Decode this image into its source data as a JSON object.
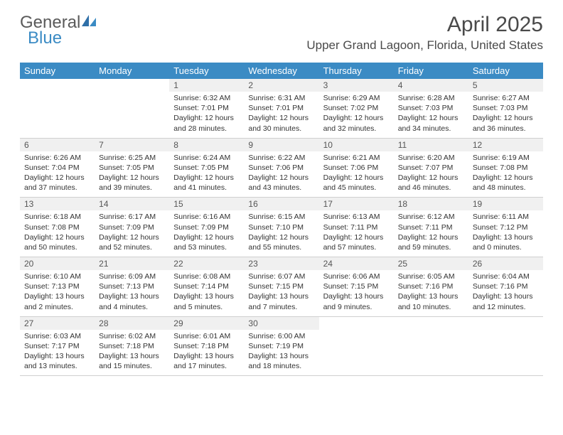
{
  "brand": {
    "part1": "General",
    "part2": "Blue"
  },
  "title": "April 2025",
  "location": "Upper Grand Lagoon, Florida, United States",
  "colors": {
    "header_bg": "#3b8bc4",
    "header_text": "#ffffff",
    "daynum_bg": "#f0f0f0",
    "body_text": "#333333",
    "rule": "#cfcfcf"
  },
  "typography": {
    "title_fontsize": 30,
    "location_fontsize": 17,
    "dayheader_fontsize": 13,
    "daynum_fontsize": 12,
    "info_fontsize": 10.5
  },
  "day_names": [
    "Sunday",
    "Monday",
    "Tuesday",
    "Wednesday",
    "Thursday",
    "Friday",
    "Saturday"
  ],
  "weeks": [
    [
      null,
      null,
      {
        "n": "1",
        "sunrise": "6:32 AM",
        "sunset": "7:01 PM",
        "day_h": "12",
        "day_m": "28"
      },
      {
        "n": "2",
        "sunrise": "6:31 AM",
        "sunset": "7:01 PM",
        "day_h": "12",
        "day_m": "30"
      },
      {
        "n": "3",
        "sunrise": "6:29 AM",
        "sunset": "7:02 PM",
        "day_h": "12",
        "day_m": "32"
      },
      {
        "n": "4",
        "sunrise": "6:28 AM",
        "sunset": "7:03 PM",
        "day_h": "12",
        "day_m": "34"
      },
      {
        "n": "5",
        "sunrise": "6:27 AM",
        "sunset": "7:03 PM",
        "day_h": "12",
        "day_m": "36"
      }
    ],
    [
      {
        "n": "6",
        "sunrise": "6:26 AM",
        "sunset": "7:04 PM",
        "day_h": "12",
        "day_m": "37"
      },
      {
        "n": "7",
        "sunrise": "6:25 AM",
        "sunset": "7:05 PM",
        "day_h": "12",
        "day_m": "39"
      },
      {
        "n": "8",
        "sunrise": "6:24 AM",
        "sunset": "7:05 PM",
        "day_h": "12",
        "day_m": "41"
      },
      {
        "n": "9",
        "sunrise": "6:22 AM",
        "sunset": "7:06 PM",
        "day_h": "12",
        "day_m": "43"
      },
      {
        "n": "10",
        "sunrise": "6:21 AM",
        "sunset": "7:06 PM",
        "day_h": "12",
        "day_m": "45"
      },
      {
        "n": "11",
        "sunrise": "6:20 AM",
        "sunset": "7:07 PM",
        "day_h": "12",
        "day_m": "46"
      },
      {
        "n": "12",
        "sunrise": "6:19 AM",
        "sunset": "7:08 PM",
        "day_h": "12",
        "day_m": "48"
      }
    ],
    [
      {
        "n": "13",
        "sunrise": "6:18 AM",
        "sunset": "7:08 PM",
        "day_h": "12",
        "day_m": "50"
      },
      {
        "n": "14",
        "sunrise": "6:17 AM",
        "sunset": "7:09 PM",
        "day_h": "12",
        "day_m": "52"
      },
      {
        "n": "15",
        "sunrise": "6:16 AM",
        "sunset": "7:09 PM",
        "day_h": "12",
        "day_m": "53"
      },
      {
        "n": "16",
        "sunrise": "6:15 AM",
        "sunset": "7:10 PM",
        "day_h": "12",
        "day_m": "55"
      },
      {
        "n": "17",
        "sunrise": "6:13 AM",
        "sunset": "7:11 PM",
        "day_h": "12",
        "day_m": "57"
      },
      {
        "n": "18",
        "sunrise": "6:12 AM",
        "sunset": "7:11 PM",
        "day_h": "12",
        "day_m": "59"
      },
      {
        "n": "19",
        "sunrise": "6:11 AM",
        "sunset": "7:12 PM",
        "day_h": "13",
        "day_m": "0"
      }
    ],
    [
      {
        "n": "20",
        "sunrise": "6:10 AM",
        "sunset": "7:13 PM",
        "day_h": "13",
        "day_m": "2"
      },
      {
        "n": "21",
        "sunrise": "6:09 AM",
        "sunset": "7:13 PM",
        "day_h": "13",
        "day_m": "4"
      },
      {
        "n": "22",
        "sunrise": "6:08 AM",
        "sunset": "7:14 PM",
        "day_h": "13",
        "day_m": "5"
      },
      {
        "n": "23",
        "sunrise": "6:07 AM",
        "sunset": "7:15 PM",
        "day_h": "13",
        "day_m": "7"
      },
      {
        "n": "24",
        "sunrise": "6:06 AM",
        "sunset": "7:15 PM",
        "day_h": "13",
        "day_m": "9"
      },
      {
        "n": "25",
        "sunrise": "6:05 AM",
        "sunset": "7:16 PM",
        "day_h": "13",
        "day_m": "10"
      },
      {
        "n": "26",
        "sunrise": "6:04 AM",
        "sunset": "7:16 PM",
        "day_h": "13",
        "day_m": "12"
      }
    ],
    [
      {
        "n": "27",
        "sunrise": "6:03 AM",
        "sunset": "7:17 PM",
        "day_h": "13",
        "day_m": "13"
      },
      {
        "n": "28",
        "sunrise": "6:02 AM",
        "sunset": "7:18 PM",
        "day_h": "13",
        "day_m": "15"
      },
      {
        "n": "29",
        "sunrise": "6:01 AM",
        "sunset": "7:18 PM",
        "day_h": "13",
        "day_m": "17"
      },
      {
        "n": "30",
        "sunrise": "6:00 AM",
        "sunset": "7:19 PM",
        "day_h": "13",
        "day_m": "18"
      },
      null,
      null,
      null
    ]
  ],
  "labels": {
    "sunrise": "Sunrise:",
    "sunset": "Sunset:",
    "daylight": "Daylight:",
    "hours": "hours",
    "and": "and",
    "minutes": "minutes."
  }
}
